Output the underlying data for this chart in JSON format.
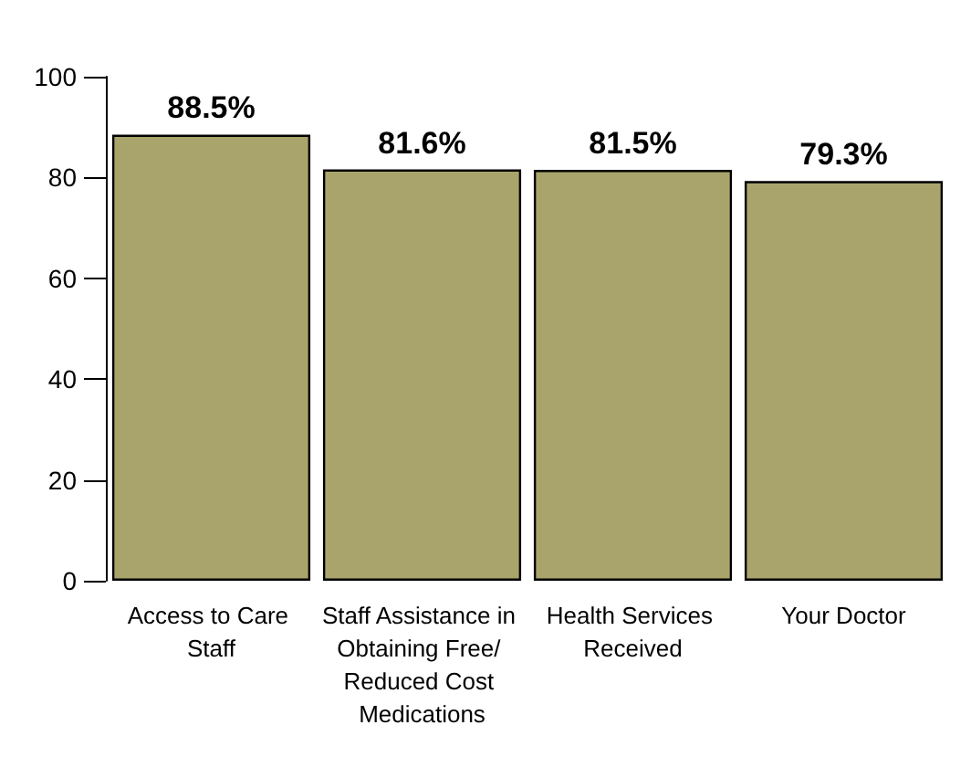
{
  "chart_data": {
    "type": "bar",
    "categories": [
      "Access to Care Staff",
      "Staff Assistance in Obtaining Free/ Reduced Cost Medications",
      "Health Services Received",
      "Your Doctor"
    ],
    "values": [
      88.5,
      81.6,
      81.5,
      79.3
    ],
    "value_labels": [
      "88.5%",
      "81.6%",
      "81.5%",
      "79.3%"
    ],
    "color": "#a9a46b",
    "ylim": [
      0,
      100
    ],
    "yticks": [
      0,
      20,
      40,
      60,
      80,
      100
    ],
    "grid": false
  }
}
